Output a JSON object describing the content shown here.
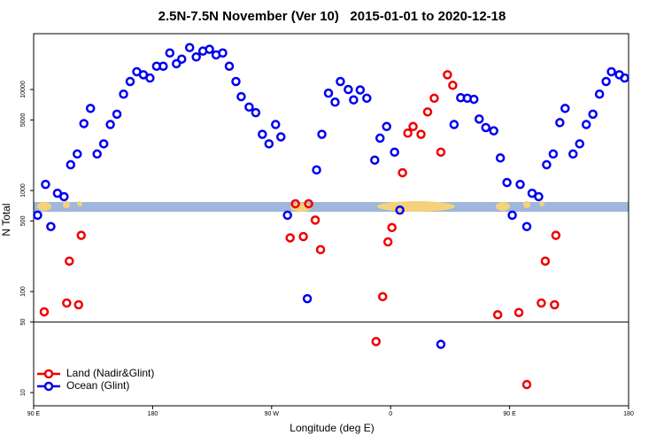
{
  "chart_data": {
    "type": "scatter",
    "title": "2.5N-7.5N November (Ver 10)   2015-01-01 to 2020-12-18",
    "x_label": "Longitude (deg E)",
    "y_label": "N Total",
    "xlim": [
      90,
      540
    ],
    "xticks": [
      {
        "value": 90,
        "label": "90 E"
      },
      180,
      {
        "value": 270,
        "label": "90 W"
      },
      {
        "value": 360,
        "label": "0"
      },
      {
        "value": 450,
        "label": "90 E"
      },
      {
        "value": 540,
        "label": "180"
      }
    ],
    "ylim": [
      7.4,
      35700
    ],
    "yticks": [
      10,
      50,
      100,
      500,
      1000,
      5000,
      10000
    ],
    "log_y": true,
    "reference_line": 50,
    "legend_position": "lower left",
    "series": [
      {
        "name": "Land (Nadir&Glint)",
        "color": "#ee0000",
        "x": [
          98,
          115,
          117,
          124,
          126,
          284,
          288,
          294,
          298,
          303,
          307,
          349,
          354,
          358,
          361,
          369,
          373,
          377,
          383,
          388,
          393,
          398,
          403,
          407,
          441,
          457,
          463,
          474,
          477,
          484,
          485
        ],
        "values": [
          63,
          77,
          200,
          74,
          360,
          340,
          740,
          350,
          740,
          510,
          260,
          32,
          89,
          310,
          430,
          1500,
          3700,
          4300,
          3600,
          6000,
          8200,
          2400,
          14000,
          11000,
          59,
          62,
          12,
          77,
          200,
          74,
          360
        ]
      },
      {
        "name": "Ocean (Glint)",
        "color": "#0000ee",
        "x": [
          93,
          99,
          103,
          108,
          113,
          118,
          123,
          128,
          133,
          138,
          143,
          148,
          153,
          158,
          163,
          168,
          173,
          178,
          183,
          188,
          193,
          198,
          202,
          208,
          213,
          218,
          223,
          228,
          233,
          238,
          243,
          247,
          253,
          258,
          263,
          268,
          273,
          277,
          282,
          297,
          304,
          308,
          313,
          318,
          322,
          328,
          332,
          337,
          342,
          348,
          352,
          357,
          363,
          367,
          398,
          408,
          413,
          418,
          423,
          427,
          432,
          438,
          443,
          448,
          452,
          458,
          463,
          467,
          472,
          478,
          483,
          488,
          492,
          498,
          503,
          508,
          513,
          518,
          523,
          527,
          533,
          537
        ],
        "values": [
          570,
          1150,
          440,
          940,
          870,
          1800,
          2300,
          4600,
          6500,
          2300,
          2900,
          4500,
          5700,
          9000,
          12000,
          15000,
          14000,
          13000,
          17000,
          17000,
          23000,
          18000,
          20000,
          26000,
          21000,
          24000,
          25000,
          22000,
          23000,
          17000,
          12000,
          8500,
          6700,
          5900,
          3600,
          2900,
          4500,
          3400,
          570,
          85,
          1600,
          3600,
          9200,
          7500,
          12000,
          10000,
          7900,
          9900,
          8200,
          2000,
          3300,
          4300,
          2400,
          640,
          30,
          4500,
          8300,
          8200,
          8000,
          5100,
          4200,
          3900,
          2100,
          1200,
          570,
          1150,
          440,
          940,
          870,
          1800,
          2300,
          4700,
          6500,
          2300,
          2900,
          4500,
          5700,
          9000,
          12000,
          15000,
          14000,
          13000
        ]
      }
    ]
  }
}
